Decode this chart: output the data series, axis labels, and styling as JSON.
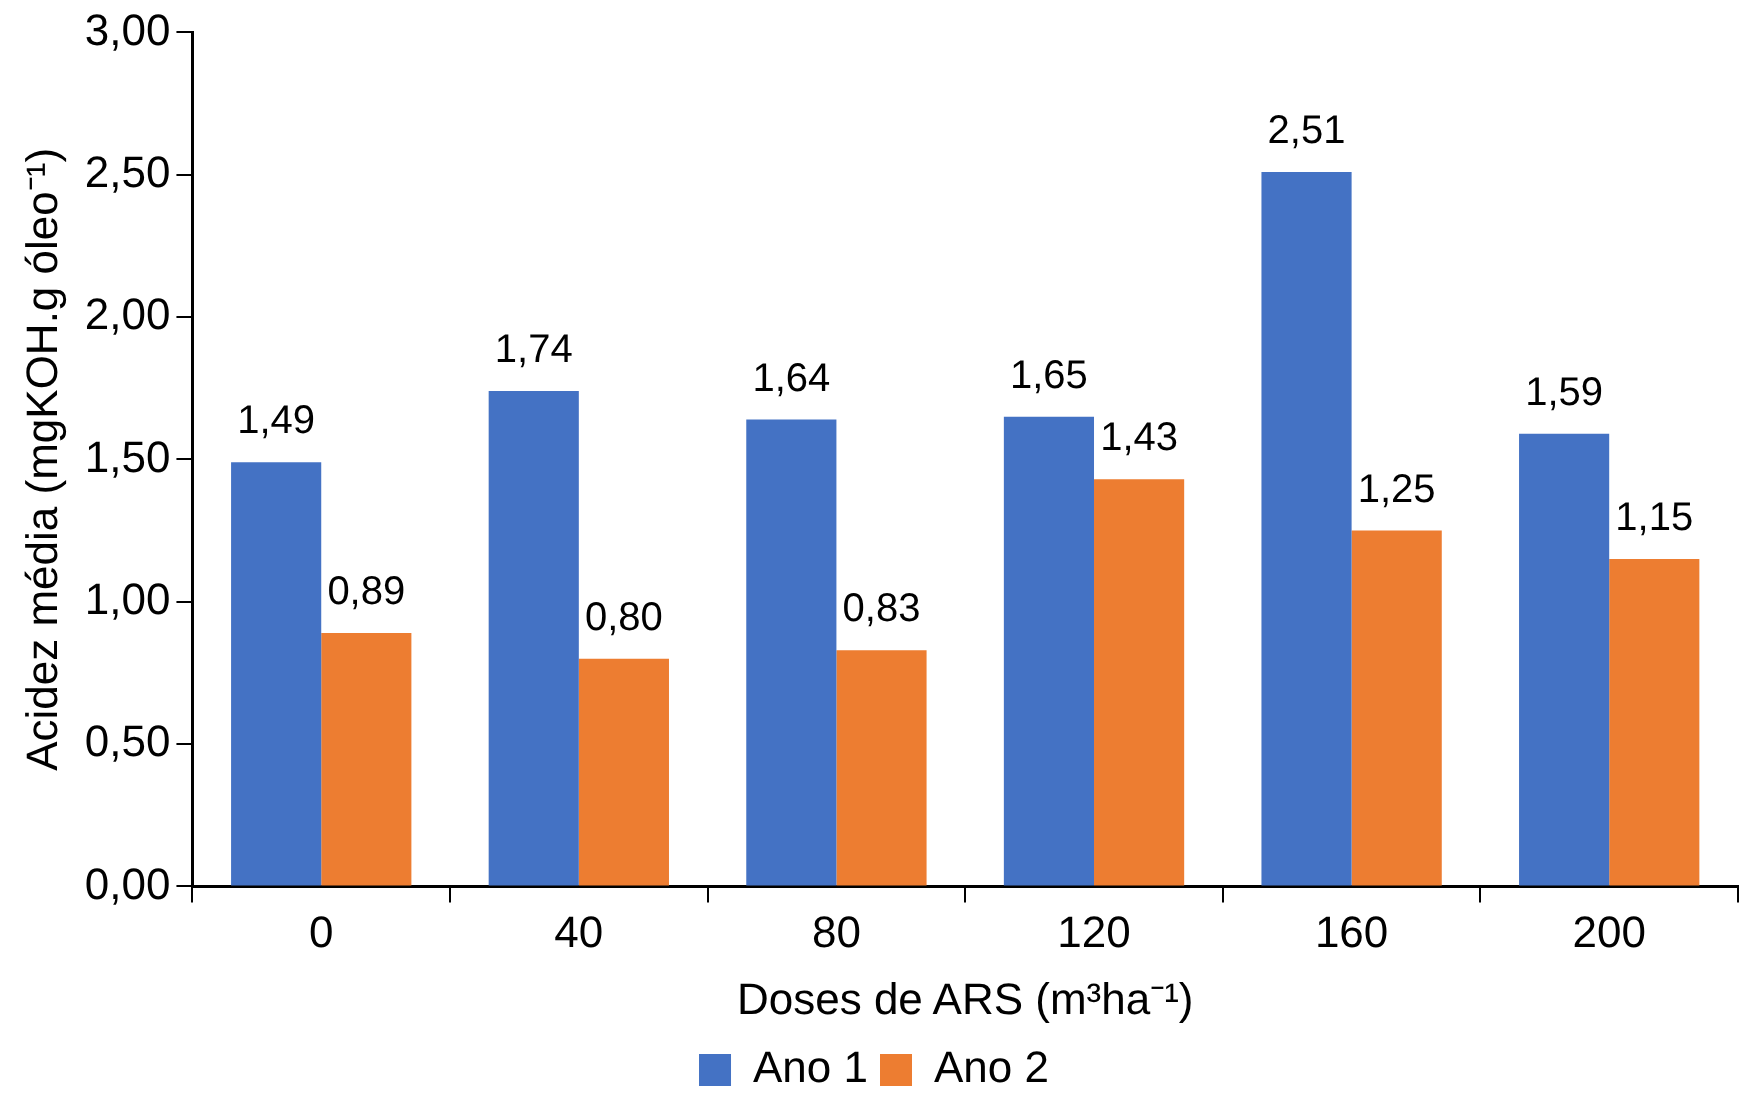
{
  "chart_data": {
    "type": "bar",
    "xlabel": "Doses de ARS (m³ha⁻¹)",
    "ylabel": "Acidez média (mgKOH.g óleo⁻¹)",
    "categories": [
      "0",
      "40",
      "80",
      "120",
      "160",
      "200"
    ],
    "series": [
      {
        "name": "Ano 1",
        "color": "#4472c4",
        "values": [
          1.49,
          1.74,
          1.64,
          1.65,
          2.51,
          1.59
        ],
        "value_labels": [
          "1,49",
          "1,74",
          "1,64",
          "1,65",
          "2,51",
          "1,59"
        ]
      },
      {
        "name": "Ano 2",
        "color": "#ed7d31",
        "values": [
          0.89,
          0.8,
          0.83,
          1.43,
          1.25,
          1.15
        ],
        "value_labels": [
          "0,89",
          "0,80",
          "0,83",
          "1,43",
          "1,25",
          "1,15"
        ]
      }
    ],
    "ylim": [
      0,
      3
    ],
    "yticks": [
      {
        "value": 0,
        "label": "0,00"
      },
      {
        "value": 0.5,
        "label": "0,50"
      },
      {
        "value": 1,
        "label": "1,00"
      },
      {
        "value": 1.5,
        "label": "1,50"
      },
      {
        "value": 2,
        "label": "2,00"
      },
      {
        "value": 2.5,
        "label": "2,50"
      },
      {
        "value": 3,
        "label": "3,00"
      }
    ],
    "grid": false,
    "legend": "bottom"
  }
}
